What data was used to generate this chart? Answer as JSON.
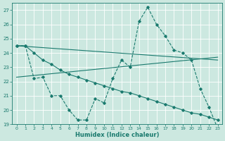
{
  "xlabel": "Humidex (Indice chaleur)",
  "bg_color": "#cce8e0",
  "grid_color": "#ffffff",
  "line_color": "#1a7a6e",
  "xlim": [
    -0.5,
    23.5
  ],
  "ylim": [
    19,
    27.5
  ],
  "x_ticks": [
    0,
    1,
    2,
    3,
    4,
    5,
    6,
    7,
    8,
    9,
    10,
    11,
    12,
    13,
    14,
    15,
    16,
    17,
    18,
    19,
    20,
    21,
    22,
    23
  ],
  "y_ticks": [
    19,
    20,
    21,
    22,
    23,
    24,
    25,
    26,
    27
  ],
  "series_jagged_x": [
    0,
    1,
    2,
    3,
    4,
    5,
    6,
    7,
    8,
    9,
    10,
    11,
    12,
    13,
    14,
    15,
    16,
    17,
    18,
    19,
    20,
    21,
    22,
    23
  ],
  "series_jagged_y": [
    24.5,
    24.5,
    22.2,
    22.3,
    21.0,
    21.0,
    20.0,
    19.3,
    19.3,
    20.8,
    20.5,
    22.2,
    23.5,
    23.0,
    26.2,
    27.2,
    26.0,
    25.2,
    24.2,
    24.0,
    23.5,
    21.5,
    20.2,
    18.7
  ],
  "series_trend1_x": [
    0,
    23
  ],
  "series_trend1_y": [
    22.3,
    23.7
  ],
  "series_trend2_x": [
    0,
    23
  ],
  "series_trend2_y": [
    24.5,
    23.5
  ],
  "series_decline_x": [
    0,
    1,
    2,
    3,
    4,
    5,
    6,
    7,
    8,
    9,
    10,
    11,
    12,
    13,
    14,
    15,
    16,
    17,
    18,
    19,
    20,
    21,
    22,
    23
  ],
  "series_decline_y": [
    24.5,
    24.5,
    24.0,
    23.5,
    23.2,
    22.8,
    22.5,
    22.3,
    22.1,
    21.9,
    21.7,
    21.5,
    21.3,
    21.2,
    21.0,
    20.8,
    20.6,
    20.4,
    20.2,
    20.0,
    19.8,
    19.7,
    19.5,
    19.3
  ]
}
